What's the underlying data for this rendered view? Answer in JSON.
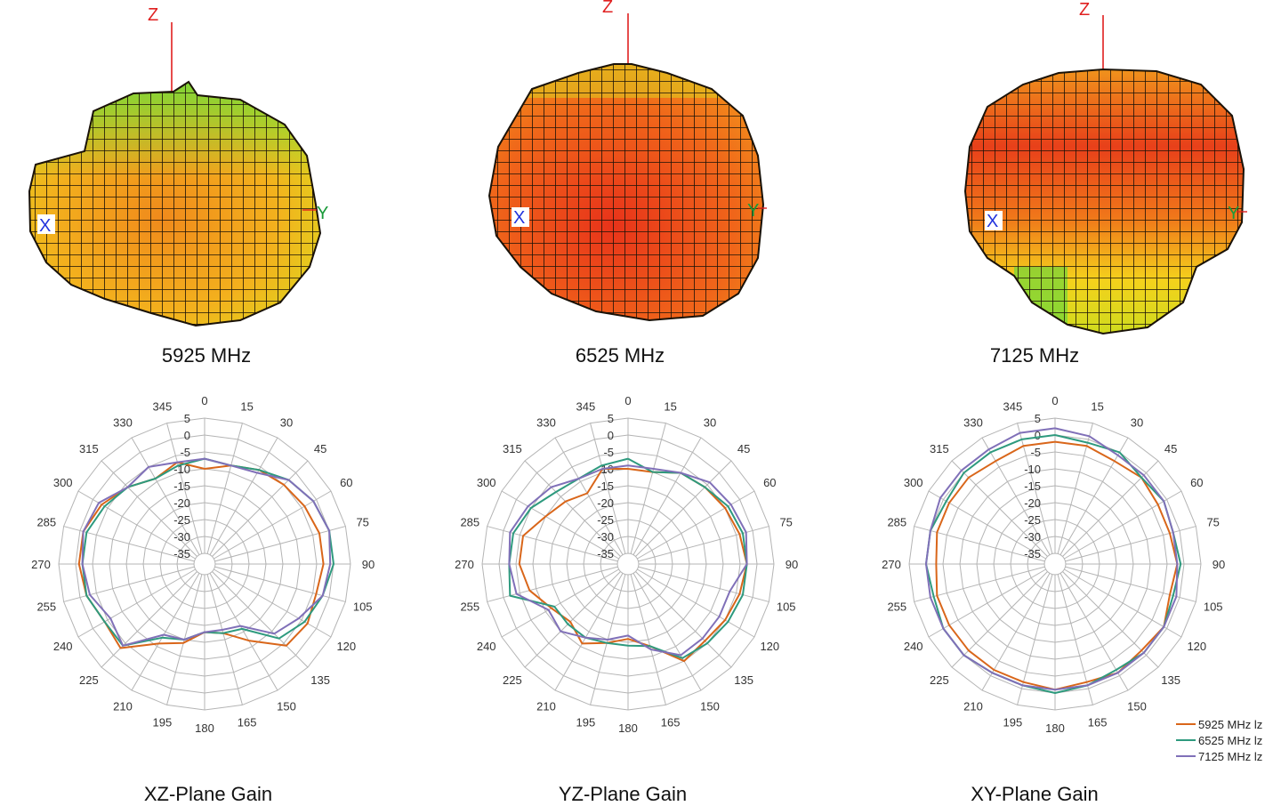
{
  "pattern_3d": [
    {
      "caption": "5925 MHz",
      "z_label": "Z",
      "x_label": "X",
      "y_label": "Y"
    },
    {
      "caption": "6525 MHz",
      "z_label": "Z",
      "x_label": "X",
      "y_label": "Y"
    },
    {
      "caption": "7125 MHz",
      "z_label": "Z",
      "x_label": "X",
      "y_label": "Y"
    }
  ],
  "colors": {
    "s5925": "#d9661a",
    "s6525": "#2e9a7e",
    "s7125": "#8070b8",
    "grid": "#b4b4b4"
  },
  "chart_data": [
    {
      "type": "polar",
      "title": "XZ-Plane Gain",
      "angles": [
        0,
        15,
        30,
        45,
        60,
        75,
        90,
        105,
        120,
        135,
        150,
        165,
        180,
        195,
        210,
        225,
        240,
        255,
        270,
        285,
        300,
        315,
        330,
        345
      ],
      "r_ticks": [
        5,
        0,
        -5,
        -10,
        -15,
        -20,
        -25,
        -30,
        -35
      ],
      "rlim": [
        -35,
        5
      ],
      "series": [
        {
          "name": "5925 MHz",
          "values": [
            -10,
            -8,
            -6,
            -5,
            -4,
            -3,
            -3,
            -4,
            -3,
            -4,
            -12,
            -17,
            -18,
            -14,
            -11,
            -3,
            -4,
            -2,
            -1,
            -1,
            -3,
            -6,
            -9,
            -7
          ]
        },
        {
          "name": "6525 MHz",
          "values": [
            -7,
            -8,
            -6,
            -3,
            -1,
            0,
            0,
            -2,
            -4,
            -7,
            -16,
            -17,
            -18,
            -15,
            -13,
            -4,
            -4,
            -2,
            -2,
            -2,
            -4,
            -6,
            -9,
            -8
          ]
        },
        {
          "name": "7125 MHz",
          "values": [
            -7,
            -8,
            -7,
            -3,
            -1,
            0,
            -1,
            -2,
            -6,
            -9,
            -17,
            -18,
            -18,
            -15,
            -14,
            -4,
            -6,
            -3,
            -2,
            -1,
            -2,
            -6,
            -5,
            -7
          ]
        }
      ]
    },
    {
      "type": "polar",
      "title": "YZ-Plane Gain",
      "angles": [
        0,
        15,
        30,
        45,
        60,
        75,
        90,
        105,
        120,
        135,
        150,
        165,
        180,
        195,
        210,
        225,
        240,
        255,
        270,
        285,
        300,
        315,
        330,
        345
      ],
      "r_ticks": [
        5,
        0,
        -5,
        -10,
        -15,
        -20,
        -25,
        -30,
        -35
      ],
      "rlim": [
        -35,
        5
      ],
      "series": [
        {
          "name": "5925 MHz",
          "values": [
            -10,
            -10,
            -7,
            -6,
            -5,
            -4,
            -3,
            -4,
            -5,
            -6,
            -5,
            -13,
            -16,
            -14,
            -11,
            -14,
            -12,
            -8,
            -6,
            -6,
            -10,
            -12,
            -14,
            -9
          ]
        },
        {
          "name": "6525 MHz",
          "values": [
            -7,
            -10,
            -7,
            -6,
            -4,
            -3,
            -3,
            -3,
            -4,
            -5,
            -6,
            -13,
            -14,
            -14,
            -13,
            -13,
            -13,
            -2,
            -3,
            -3,
            -5,
            -8,
            -9,
            -8
          ]
        },
        {
          "name": "7125 MHz",
          "values": [
            -9,
            -9,
            -7,
            -4,
            -3,
            -2,
            -3,
            -7,
            -7,
            -7,
            -7,
            -12,
            -17,
            -15,
            -13,
            -10,
            -11,
            -4,
            -3,
            -2,
            -4,
            -6,
            -9,
            -9
          ]
        }
      ]
    },
    {
      "type": "polar",
      "title": "XY-Plane Gain",
      "angles": [
        0,
        15,
        30,
        45,
        60,
        75,
        90,
        105,
        120,
        135,
        150,
        165,
        180,
        195,
        210,
        225,
        240,
        255,
        270,
        285,
        300,
        315,
        330,
        345
      ],
      "r_ticks": [
        5,
        0,
        -5,
        -10,
        -15,
        -20,
        -25,
        -30,
        -35
      ],
      "rlim": [
        -35,
        5
      ],
      "series": [
        {
          "name": "5925 MHz",
          "values": [
            -2,
            -2,
            -3,
            -2,
            -3,
            -3,
            -2,
            -3,
            -1,
            -2,
            -1,
            -2,
            -1,
            -2,
            -2,
            -2,
            -2,
            -2,
            -3,
            -2,
            -2,
            -2,
            -3,
            -2
          ]
        },
        {
          "name": "6525 MHz",
          "values": [
            0,
            -1,
            0,
            -2,
            -1,
            -2,
            -1,
            -2,
            -1,
            -1,
            -2,
            -1,
            0,
            -1,
            -1,
            0,
            0,
            -1,
            0,
            0,
            -1,
            0,
            0,
            0
          ]
        },
        {
          "name": "7125 MHz",
          "values": [
            2,
            1,
            -1,
            -1,
            -1,
            -2,
            -2,
            -1,
            -1,
            -1,
            -1,
            -1,
            -1,
            -1,
            -1,
            0,
            0,
            0,
            0,
            0,
            1,
            1,
            1,
            2
          ]
        }
      ],
      "legend": [
        "5925 MHz lz",
        "6525 MHz lz",
        "7125 MHz lz"
      ],
      "legend_position": "bottom-right"
    }
  ]
}
